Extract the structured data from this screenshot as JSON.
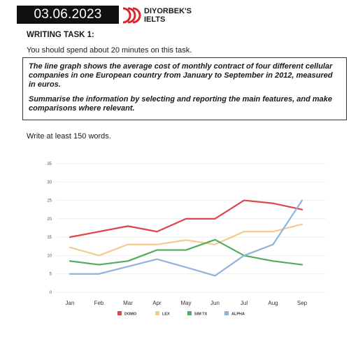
{
  "header": {
    "date": "03.06.2023",
    "brand_line1": "DIYORBEK'S",
    "brand_line2": "IELTS",
    "logo_color": "#d7262e"
  },
  "task": {
    "heading": "WRITING TASK 1:",
    "time_note": "You should spend about 20 minutes on this task.",
    "prompt_1": "The line graph shows the average cost of monthly contract of four different cellular companies in one European country from January to September in 2012, measured in euros.",
    "prompt_2": "Summarise the information by selecting and reporting the main features, and make comparisons where relevant.",
    "word_note": "Write at least 150 words."
  },
  "chart_data": {
    "type": "line",
    "categories": [
      "Jan",
      "Feb",
      "Mar",
      "Apr",
      "May",
      "Jun",
      "Jul",
      "Aug",
      "Sep"
    ],
    "series": [
      {
        "name": "DOMO",
        "color": "#e0454b",
        "values": [
          15,
          16.5,
          18,
          16.5,
          20,
          20,
          25,
          24.2,
          22.5
        ]
      },
      {
        "name": "LEX",
        "color": "#f6c98c",
        "values": [
          12.2,
          10,
          13,
          13,
          14.2,
          13,
          16.5,
          16.5,
          18.5
        ]
      },
      {
        "name": "SIM TX",
        "color": "#4fae5e",
        "values": [
          8.5,
          7.5,
          8.5,
          11.5,
          11.5,
          14.3,
          10,
          8.5,
          7.5
        ]
      },
      {
        "name": "ALPHA",
        "color": "#8fb3dc",
        "values": [
          5,
          5,
          7,
          9,
          6.8,
          4.5,
          10,
          13,
          25
        ]
      }
    ],
    "yticks": [
      0,
      5,
      10,
      15,
      20,
      25,
      30,
      35
    ],
    "ylim": [
      0,
      35
    ],
    "grid": true,
    "legend": "bottom",
    "title": "",
    "xlabel": "",
    "ylabel": ""
  }
}
